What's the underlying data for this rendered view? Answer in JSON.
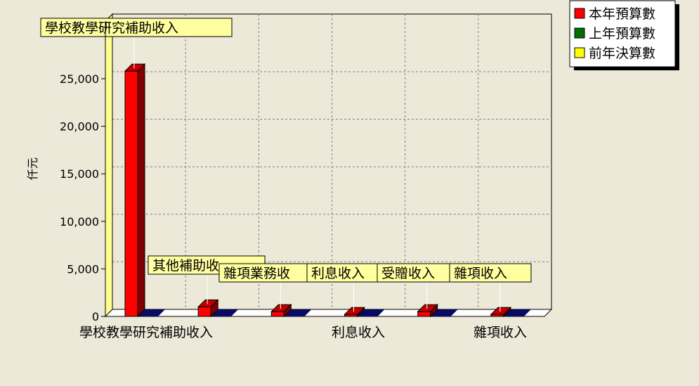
{
  "colors": {
    "background": "#ece9d8",
    "plot_face": "#ece9d8",
    "wall_back": "#ffffff",
    "grid": "#808080",
    "label_box": "#ffffa0",
    "axis_left_wall": "#ffff90",
    "floor_dark": "#0a0a64"
  },
  "chart_data": {
    "type": "bar",
    "three_d": true,
    "title": "",
    "xlabel": "",
    "ylabel": "仟元",
    "ylim": [
      0,
      30000
    ],
    "yticks": [
      0,
      5000,
      10000,
      15000,
      20000,
      25000
    ],
    "ytick_labels": [
      "0",
      "5,000",
      "10,000",
      "15,000",
      "20,000",
      "25,000"
    ],
    "grid": true,
    "legend_position": "top-right",
    "categories": [
      "學校教學研究補助收入",
      "其他補助收入",
      "雜項業務收入",
      "利息收入",
      "受贈收入",
      "雜項收入"
    ],
    "xtick_labels_shown": [
      "學校教學研究補助收入",
      "利息收入",
      "雜項收入"
    ],
    "xtick_label_indices": [
      0,
      3,
      5
    ],
    "point_labels": [
      "學校教學研究補助收入",
      "其他補助收入",
      "雜項業務收入",
      "利息收入",
      "受贈收入",
      "雜項收入"
    ],
    "point_labels_displayed": [
      "學校教學研究補助收入",
      "其他補助收",
      "雜項業務收",
      "利息收入",
      "受贈收入",
      "雜項收入"
    ],
    "series": [
      {
        "name": "本年預算數",
        "color": "#ff0000",
        "values": [
          25800,
          1000,
          500,
          200,
          500,
          200
        ]
      },
      {
        "name": "上年預算數",
        "color": "#007000",
        "values": [
          0,
          0,
          0,
          0,
          0,
          0
        ]
      },
      {
        "name": "前年決算數",
        "color": "#ffff00",
        "values": [
          0,
          0,
          0,
          0,
          0,
          0
        ]
      }
    ]
  }
}
